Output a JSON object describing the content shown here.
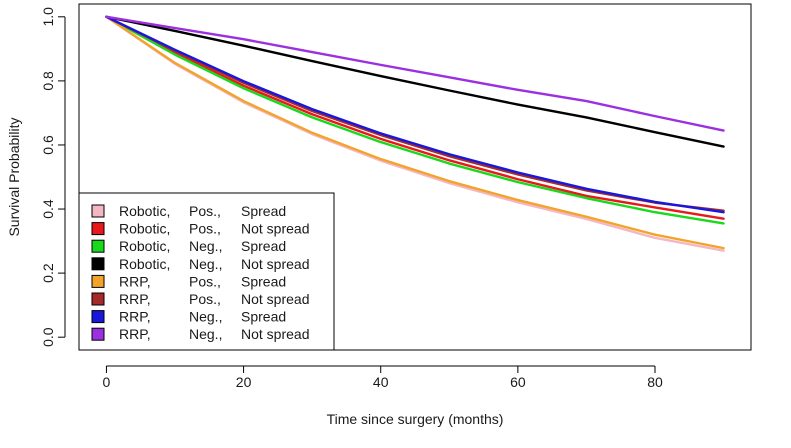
{
  "chart_data": {
    "type": "line",
    "title": "",
    "xlabel": "Time since surgery (months)",
    "ylabel": "Survival Probability",
    "xlim": [
      -4,
      94
    ],
    "ylim": [
      -0.04,
      1.04
    ],
    "xticks": [
      0,
      20,
      40,
      60,
      80
    ],
    "xtick_labels": [
      "0",
      "20",
      "40",
      "60",
      "80"
    ],
    "yticks": [
      0.0,
      0.2,
      0.4,
      0.6,
      0.8,
      1.0
    ],
    "ytick_labels": [
      "0.0",
      "0.2",
      "0.4",
      "0.6",
      "0.8",
      "1.0"
    ],
    "grid": false,
    "legend_position": "bottom-left",
    "x": [
      0,
      10,
      20,
      30,
      40,
      50,
      60,
      70,
      80,
      90
    ],
    "series": [
      {
        "col1": "Robotic,",
        "col2": "Pos.,",
        "col3": "Spread",
        "color": "#f4b6c2",
        "values": [
          1.0,
          0.853,
          0.733,
          0.634,
          0.551,
          0.481,
          0.421,
          0.369,
          0.31,
          0.27
        ]
      },
      {
        "col1": "Robotic,",
        "col2": "Pos.,",
        "col3": "Not spread",
        "color": "#e8191b",
        "values": [
          1.0,
          0.888,
          0.785,
          0.696,
          0.619,
          0.552,
          0.493,
          0.441,
          0.405,
          0.37
        ]
      },
      {
        "col1": "Robotic,",
        "col2": "Neg.,",
        "col3": "Spread",
        "color": "#19d91d",
        "values": [
          1.0,
          0.882,
          0.777,
          0.686,
          0.609,
          0.542,
          0.484,
          0.434,
          0.39,
          0.355
        ]
      },
      {
        "col1": "Robotic,",
        "col2": "Neg.,",
        "col3": "Not spread",
        "color": "#000000",
        "values": [
          1.0,
          0.956,
          0.91,
          0.862,
          0.815,
          0.77,
          0.726,
          0.686,
          0.64,
          0.595
        ]
      },
      {
        "col1": "RRP,",
        "col2": "Pos.,",
        "col3": "Spread",
        "color": "#f4a32a",
        "values": [
          1.0,
          0.856,
          0.737,
          0.638,
          0.556,
          0.487,
          0.428,
          0.376,
          0.32,
          0.278
        ]
      },
      {
        "col1": "RRP,",
        "col2": "Pos.,",
        "col3": "Not spread",
        "color": "#a52a2a",
        "values": [
          1.0,
          0.894,
          0.794,
          0.706,
          0.631,
          0.565,
          0.508,
          0.458,
          0.42,
          0.395
        ]
      },
      {
        "col1": "RRP,",
        "col2": "Neg.,",
        "col3": "Spread",
        "color": "#1818dd",
        "values": [
          1.0,
          0.897,
          0.799,
          0.712,
          0.636,
          0.571,
          0.514,
          0.463,
          0.422,
          0.39
        ]
      },
      {
        "col1": "RRP,",
        "col2": "Neg.,",
        "col3": "Not spread",
        "color": "#9b30e0",
        "values": [
          1.0,
          0.965,
          0.93,
          0.89,
          0.85,
          0.811,
          0.772,
          0.737,
          0.69,
          0.645
        ]
      }
    ]
  }
}
